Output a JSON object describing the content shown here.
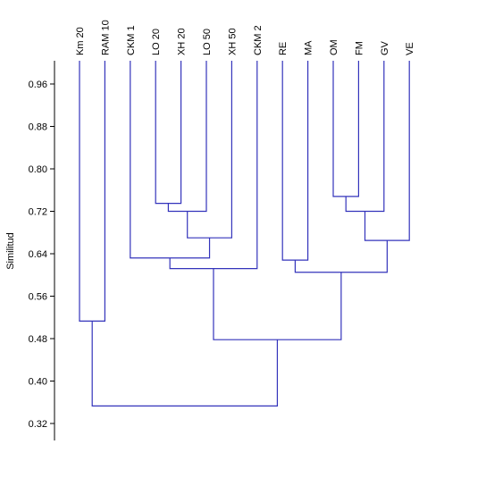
{
  "chart_data": {
    "type": "dendrogram",
    "ylabel": "Similitud",
    "ylim": [
      0.3,
      1.0
    ],
    "yticks": [
      0.96,
      0.88,
      0.8,
      0.72,
      0.64,
      0.56,
      0.48,
      0.4,
      0.32
    ],
    "leaves": [
      "Km 20",
      "RAM 10",
      "CKM 1",
      "LO 20",
      "XH 20",
      "LO 50",
      "XH 50",
      "CKM 2",
      "RE",
      "MA",
      "OM",
      "FM",
      "GV",
      "VE"
    ],
    "merges": [
      {
        "left": "LO 20",
        "right": "XH 20",
        "similarity": 0.735
      },
      {
        "left": "OM",
        "right": "FM",
        "similarity": 0.748
      },
      {
        "left": "LO 20+XH 20",
        "right": "LO 50",
        "similarity": 0.72
      },
      {
        "left": "OM+FM",
        "right": "GV",
        "similarity": 0.72
      },
      {
        "left": "LO 20+XH 20+LO 50",
        "right": "XH 50",
        "similarity": 0.67
      },
      {
        "left": "OM+FM+GV",
        "right": "VE",
        "similarity": 0.665
      },
      {
        "left": "CKM 1",
        "right": "LO 20+XH 20+LO 50+XH 50",
        "similarity": 0.632
      },
      {
        "left": "RE",
        "right": "MA",
        "similarity": 0.628
      },
      {
        "left": "CKM 1+LO 20+XH 20+LO 50+XH 50",
        "right": "CKM 2",
        "similarity": 0.612
      },
      {
        "left": "RE+MA",
        "right": "OM+FM+GV+VE",
        "similarity": 0.605
      },
      {
        "left": "Km 20",
        "right": "RAM 10",
        "similarity": 0.513
      },
      {
        "left": "CKM 1+LO 20+XH 20+LO 50+XH 50+CKM 2",
        "right": "RE+MA+OM+FM+GV+VE",
        "similarity": 0.478
      },
      {
        "left": "Km 20+RAM 10",
        "right": "CKM 1+LO 20+XH 20+LO 50+XH 50+CKM 2+RE+MA+OM+FM+GV+VE",
        "similarity": 0.353
      }
    ],
    "link_color": "#3333bb"
  }
}
